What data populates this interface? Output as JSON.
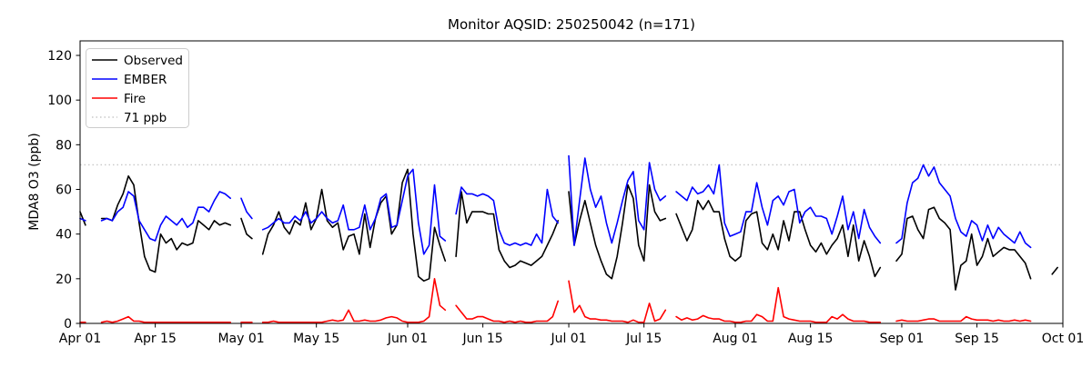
{
  "chart_data": {
    "type": "line",
    "title": "Monitor AQSID: 250250042 (n=171)",
    "ylabel": "MDA8 O3 (ppb)",
    "xlabel": "",
    "ylim": [
      0,
      126.5
    ],
    "yticks": [
      0,
      20,
      40,
      60,
      80,
      100,
      120
    ],
    "xticks": [
      {
        "label": "Apr 01",
        "day": 0
      },
      {
        "label": "Apr 15",
        "day": 14
      },
      {
        "label": "May 01",
        "day": 30
      },
      {
        "label": "May 15",
        "day": 44
      },
      {
        "label": "Jun 01",
        "day": 61
      },
      {
        "label": "Jun 15",
        "day": 75
      },
      {
        "label": "Jul 01",
        "day": 91
      },
      {
        "label": "Jul 15",
        "day": 105
      },
      {
        "label": "Aug 01",
        "day": 122
      },
      {
        "label": "Aug 15",
        "day": 136
      },
      {
        "label": "Sep 01",
        "day": 153
      },
      {
        "label": "Sep 15",
        "day": 167
      },
      {
        "label": "Oct 01",
        "day": 183
      }
    ],
    "x_start": "Apr 01",
    "x_total_days": 183,
    "grid": false,
    "legend_position": "upper left",
    "reference_line": {
      "label": "71 ppb",
      "value": 71,
      "color": "#c8c8c8",
      "style": "dotted"
    },
    "series": [
      {
        "name": "Observed",
        "color": "#000000",
        "values": [
          50,
          44,
          null,
          null,
          47,
          47,
          46,
          53,
          58,
          66,
          62,
          45,
          30,
          24,
          23,
          40,
          36,
          38,
          33,
          36,
          35,
          36,
          46,
          44,
          42,
          46,
          44,
          45,
          44,
          null,
          47,
          40,
          38,
          null,
          31,
          40,
          44,
          50,
          43,
          40,
          46,
          44,
          54,
          42,
          47,
          60,
          46,
          43,
          45,
          33,
          39,
          40,
          31,
          49,
          34,
          47,
          54,
          57,
          40,
          44,
          63,
          69,
          40,
          21,
          19,
          20,
          43,
          35,
          28,
          null,
          30,
          59,
          45,
          50,
          50,
          50,
          49,
          49,
          33,
          28,
          25,
          26,
          28,
          27,
          26,
          28,
          30,
          35,
          40,
          46,
          null,
          59,
          35,
          46,
          55,
          45,
          35,
          28,
          22,
          20,
          30,
          45,
          62,
          56,
          35,
          28,
          62,
          50,
          46,
          47,
          null,
          49,
          43,
          37,
          42,
          55,
          51,
          55,
          50,
          50,
          38,
          30,
          28,
          30,
          46,
          49,
          50,
          36,
          33,
          40,
          33,
          46,
          37,
          50,
          50,
          42,
          35,
          32,
          36,
          31,
          35,
          38,
          44,
          30,
          44,
          28,
          37,
          30,
          21,
          25,
          null,
          null,
          28,
          31,
          47,
          48,
          42,
          38,
          51,
          52,
          47,
          45,
          42,
          15,
          26,
          28,
          40,
          26,
          30,
          38,
          30,
          32,
          34,
          33,
          33,
          30,
          27,
          20,
          null,
          null,
          null,
          22,
          25
        ]
      },
      {
        "name": "EMBER",
        "color": "#0000ff",
        "values": [
          47,
          46,
          null,
          null,
          46,
          47,
          46,
          50,
          52,
          59,
          57,
          46,
          42,
          38,
          37,
          44,
          48,
          46,
          44,
          47,
          43,
          45,
          52,
          52,
          50,
          55,
          59,
          58,
          56,
          null,
          56,
          50,
          47,
          null,
          42,
          43,
          45,
          47,
          45,
          45,
          48,
          46,
          50,
          45,
          47,
          50,
          47,
          45,
          46,
          53,
          42,
          42,
          43,
          53,
          42,
          47,
          56,
          58,
          43,
          44,
          55,
          66,
          69,
          45,
          31,
          35,
          62,
          39,
          37,
          null,
          49,
          61,
          58,
          58,
          57,
          58,
          57,
          55,
          42,
          36,
          35,
          36,
          35,
          36,
          35,
          40,
          36,
          60,
          48,
          45,
          null,
          75,
          35,
          55,
          74,
          60,
          52,
          57,
          45,
          36,
          45,
          55,
          64,
          68,
          46,
          42,
          72,
          60,
          55,
          57,
          null,
          59,
          57,
          55,
          61,
          58,
          59,
          62,
          58,
          71,
          45,
          39,
          40,
          41,
          50,
          50,
          63,
          52,
          44,
          55,
          57,
          53,
          59,
          60,
          45,
          50,
          52,
          48,
          48,
          47,
          40,
          48,
          57,
          42,
          50,
          38,
          51,
          43,
          39,
          36,
          null,
          null,
          36,
          38,
          54,
          63,
          65,
          71,
          66,
          70,
          63,
          60,
          57,
          47,
          41,
          39,
          46,
          44,
          37,
          44,
          38,
          43,
          40,
          38,
          36,
          41,
          36,
          34,
          null,
          null,
          null,
          null,
          null
        ]
      },
      {
        "name": "Fire",
        "color": "#ff0000",
        "values": [
          0.5,
          0.5,
          null,
          null,
          0.5,
          1,
          0.5,
          1,
          2,
          3,
          1,
          1,
          0.5,
          0.5,
          0.5,
          0.5,
          0.5,
          0.5,
          0.5,
          0.5,
          0.5,
          0.5,
          0.5,
          0.5,
          0.5,
          0.5,
          0.5,
          0.5,
          0.5,
          null,
          0.5,
          0.5,
          0.5,
          null,
          0.5,
          0.5,
          1,
          0.5,
          0.5,
          0.5,
          0.5,
          0.5,
          0.5,
          0.5,
          0.5,
          0.5,
          1,
          1.5,
          1,
          1.5,
          6,
          1,
          1,
          1.5,
          1,
          1,
          1.5,
          2.5,
          3,
          2.5,
          1,
          0.5,
          0.5,
          0.5,
          1,
          3,
          20,
          8,
          6,
          null,
          8,
          5,
          2,
          2,
          3,
          3,
          2,
          1,
          1,
          0.5,
          1,
          0.5,
          1,
          0.5,
          0.5,
          1,
          1,
          1,
          3,
          10,
          null,
          19,
          5,
          8,
          3,
          2,
          2,
          1.5,
          1.5,
          1,
          1,
          1,
          0.5,
          1.5,
          0.5,
          0.5,
          9,
          1,
          2,
          6,
          null,
          3,
          1.5,
          2.5,
          1.5,
          2,
          3.5,
          2.5,
          2,
          2,
          1,
          1,
          0.5,
          0.5,
          1,
          1,
          4,
          3,
          1,
          1,
          16,
          3,
          2,
          1.5,
          1,
          1,
          1,
          0.5,
          0.5,
          0.5,
          3,
          2,
          4,
          2,
          1,
          1,
          1,
          0.5,
          0.5,
          0.5,
          null,
          null,
          1,
          1.5,
          1,
          1,
          1,
          1.5,
          2,
          2,
          1,
          1,
          1,
          1,
          1,
          3,
          2,
          1.5,
          1.5,
          1.5,
          1,
          1.5,
          1,
          1,
          1.5,
          1,
          1.5,
          1,
          null,
          null,
          null,
          null,
          null
        ]
      }
    ]
  }
}
